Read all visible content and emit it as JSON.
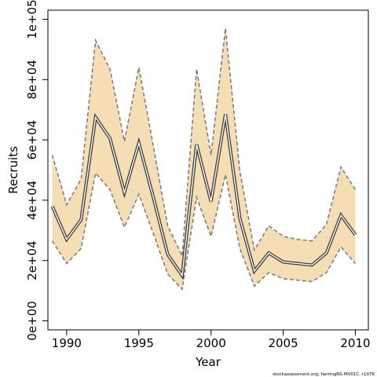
{
  "chart_data": {
    "type": "line",
    "title": "",
    "xlabel": "Year",
    "ylabel": "Recruits",
    "xlim": [
      1988.7,
      2010.9
    ],
    "ylim": [
      -3000,
      103000
    ],
    "x_ticks": [
      1990,
      1995,
      2000,
      2005,
      2010
    ],
    "x_tick_labels": [
      "1990",
      "1995",
      "2000",
      "2005",
      "2010"
    ],
    "y_ticks": [
      0,
      20000,
      40000,
      60000,
      80000,
      100000
    ],
    "y_tick_labels": [
      "0e+00",
      "2e+04",
      "4e+04",
      "6e+04",
      "8e+04",
      "1e+05"
    ],
    "grid": false,
    "x": [
      1989,
      1990,
      1991,
      1992,
      1993,
      1994,
      1995,
      1996,
      1997,
      1998,
      1999,
      2000,
      2001,
      2002,
      2003,
      2004,
      2005,
      2006,
      2007,
      2008,
      2009,
      2010
    ],
    "series": [
      {
        "role": "estimate",
        "values": [
          38000,
          27000,
          33500,
          67500,
          60500,
          42500,
          59000,
          41000,
          22000,
          15000,
          58500,
          39500,
          68500,
          34000,
          16500,
          22500,
          19500,
          19000,
          18500,
          22500,
          35000,
          28500
        ]
      },
      {
        "role": "upper",
        "values": [
          55000,
          38500,
          47000,
          93000,
          83500,
          59500,
          84000,
          58000,
          31500,
          21500,
          83500,
          55000,
          97000,
          49500,
          23500,
          31500,
          28000,
          27000,
          26500,
          32000,
          51000,
          43500
        ]
      },
      {
        "role": "lower",
        "values": [
          26500,
          19000,
          24000,
          49000,
          43500,
          31000,
          42000,
          29000,
          15500,
          10500,
          41000,
          28000,
          48500,
          24000,
          11500,
          16000,
          14000,
          13500,
          13000,
          16000,
          24500,
          19000
        ]
      }
    ],
    "colors": {
      "band_fill": "#f5deb3",
      "bound_line": "#7f7f7f",
      "estimate_line": "#3a3a3a",
      "outer_line": "#ffffff"
    }
  },
  "credit": "stockassessment.org, herringNS-MV01C, r1076"
}
